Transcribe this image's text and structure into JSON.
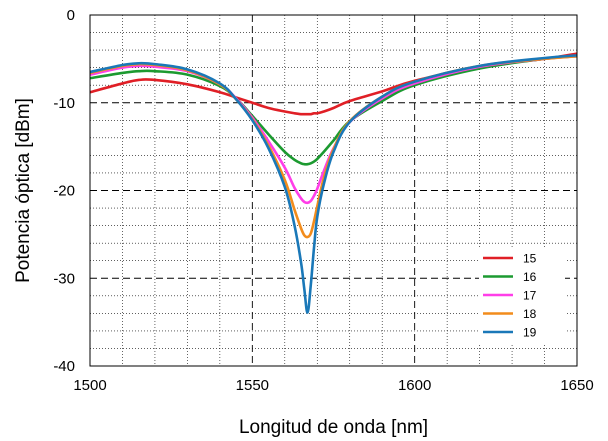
{
  "chart_data": {
    "type": "line",
    "title": "",
    "xlabel": "Longitud de onda [nm]",
    "ylabel": "Potencia óptica [dBm]",
    "xlim": [
      1500,
      1650
    ],
    "ylim": [
      -40,
      0
    ],
    "x_major_ticks": [
      1500,
      1550,
      1600,
      1650
    ],
    "y_major_ticks": [
      -40,
      -30,
      -20,
      -10,
      0
    ],
    "x_tick_labels": [
      "1500",
      "1550",
      "1600",
      "1650"
    ],
    "y_tick_labels": [
      "-40",
      "-30",
      "-20",
      "-10",
      "0"
    ],
    "grid": "major dashed, minor dotted",
    "legend_position": "bottom-right",
    "x": [
      1500,
      1510,
      1515,
      1520,
      1530,
      1540,
      1545,
      1550,
      1555,
      1560,
      1563,
      1565,
      1566,
      1567,
      1568,
      1569,
      1570,
      1572,
      1575,
      1580,
      1590,
      1600,
      1620,
      1640,
      1650
    ],
    "series": [
      {
        "name": "15",
        "color": "#e01f26",
        "values": [
          -8.8,
          -7.8,
          -7.4,
          -7.4,
          -7.9,
          -8.8,
          -9.4,
          -10.0,
          -10.6,
          -11.0,
          -11.2,
          -11.3,
          -11.3,
          -11.3,
          -11.3,
          -11.2,
          -11.2,
          -11.0,
          -10.6,
          -9.8,
          -8.7,
          -7.5,
          -5.9,
          -5.0,
          -4.4
        ]
      },
      {
        "name": "16",
        "color": "#1c9a30",
        "values": [
          -7.2,
          -6.6,
          -6.4,
          -6.4,
          -6.8,
          -8.1,
          -9.5,
          -11.5,
          -13.6,
          -15.6,
          -16.5,
          -16.9,
          -17.0,
          -17.0,
          -16.9,
          -16.7,
          -16.4,
          -15.6,
          -14.3,
          -12.1,
          -9.8,
          -8.0,
          -6.1,
          -5.0,
          -4.7
        ]
      },
      {
        "name": "17",
        "color": "#ff3ee8",
        "values": [
          -6.8,
          -6.0,
          -5.8,
          -5.9,
          -6.4,
          -7.9,
          -9.5,
          -11.7,
          -14.4,
          -17.4,
          -19.7,
          -20.9,
          -21.3,
          -21.4,
          -21.2,
          -20.6,
          -19.8,
          -17.8,
          -15.2,
          -12.2,
          -9.5,
          -7.8,
          -5.9,
          -5.0,
          -4.7
        ]
      },
      {
        "name": "18",
        "color": "#f28c1c",
        "values": [
          -6.6,
          -5.8,
          -5.6,
          -5.7,
          -6.3,
          -7.9,
          -9.6,
          -11.9,
          -14.9,
          -18.8,
          -22.2,
          -24.3,
          -25.1,
          -25.3,
          -24.9,
          -23.5,
          -21.8,
          -18.6,
          -15.3,
          -12.1,
          -9.3,
          -7.6,
          -5.8,
          -5.0,
          -4.7
        ]
      },
      {
        "name": "19",
        "color": "#1a78b8",
        "values": [
          -6.5,
          -5.7,
          -5.5,
          -5.6,
          -6.2,
          -7.8,
          -9.6,
          -12.0,
          -15.2,
          -19.6,
          -24.0,
          -28.2,
          -31.2,
          -33.9,
          -30.8,
          -26.5,
          -23.0,
          -19.3,
          -15.6,
          -12.2,
          -9.3,
          -7.6,
          -5.8,
          -4.9,
          -4.6
        ]
      }
    ]
  }
}
